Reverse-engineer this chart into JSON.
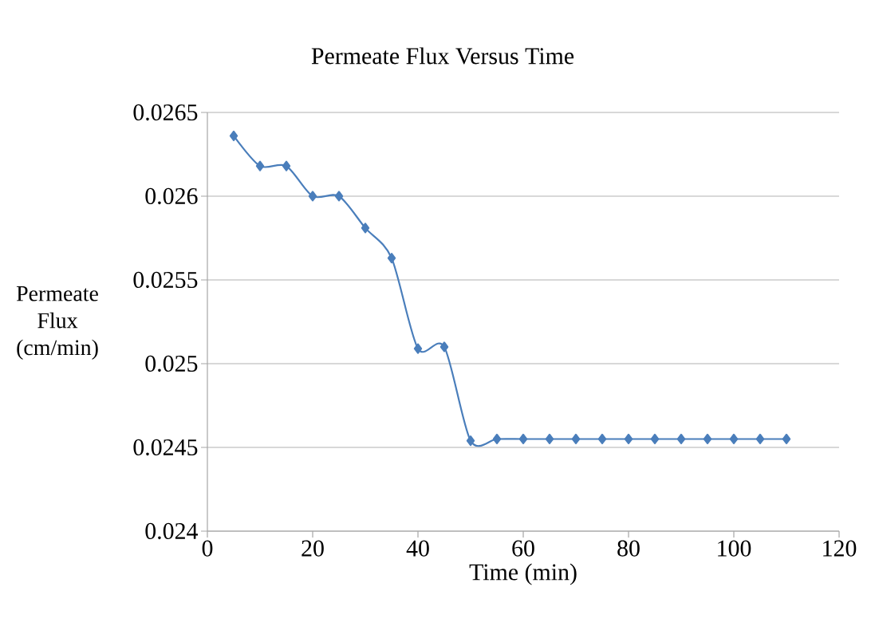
{
  "chart_data": {
    "type": "line",
    "title": "Permeate Flux Versus Time",
    "xlabel": "Time (min)",
    "ylabel": "Permeate Flux (cm/min)",
    "x": [
      5,
      10,
      15,
      20,
      25,
      30,
      35,
      40,
      45,
      50,
      55,
      60,
      65,
      70,
      75,
      80,
      85,
      90,
      95,
      100,
      105,
      110
    ],
    "series": [
      {
        "color": "#4a7ebb",
        "values": [
          0.02636,
          0.02618,
          0.02618,
          0.026,
          0.026,
          0.02581,
          0.02563,
          0.02509,
          0.0251,
          0.02454,
          0.02455,
          0.02455,
          0.02455,
          0.02455,
          0.02455,
          0.02455,
          0.02455,
          0.02455,
          0.02455,
          0.02455,
          0.02455,
          0.02455
        ]
      }
    ],
    "xlim": [
      0,
      120
    ],
    "ylim": [
      0.024,
      0.0265
    ],
    "xticks": [
      0,
      20,
      40,
      60,
      80,
      100,
      120
    ],
    "yticks": [
      0.024,
      0.0245,
      0.025,
      0.0255,
      0.026,
      0.0265
    ],
    "grid": "y",
    "marker": "diamond",
    "line_style": "solid"
  }
}
